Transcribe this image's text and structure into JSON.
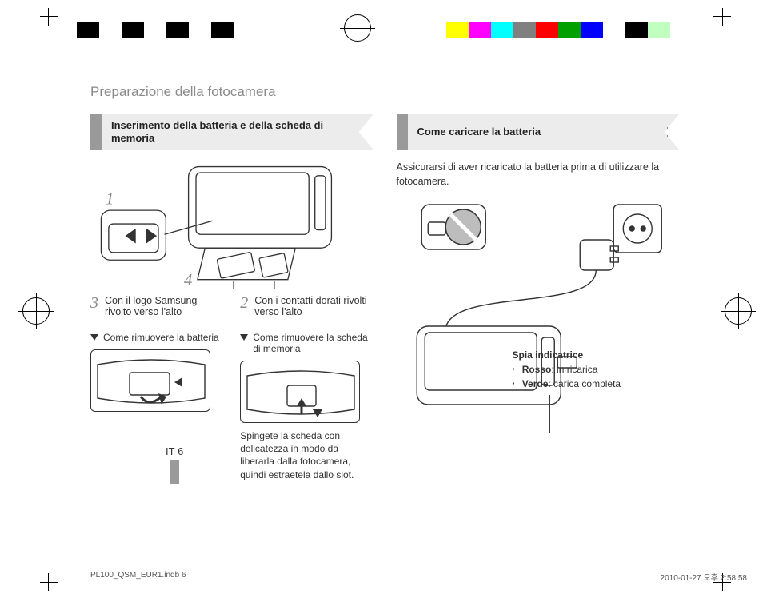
{
  "print_bars": {
    "left_colors": [
      "#000000",
      "#ffffff",
      "#000000",
      "#ffffff",
      "#000000",
      "#ffffff",
      "#000000",
      "#ffffff"
    ],
    "right_colors": [
      "#ffff00",
      "#ff00ff",
      "#00ffff",
      "#808080",
      "#ff0000",
      "#00a000",
      "#0000ff",
      "#ffffff",
      "#000000",
      "#c0ffc0"
    ]
  },
  "page_title": "Preparazione della fotocamera",
  "left": {
    "heading": "Inserimento della batteria e della scheda di memoria",
    "step1_num": "1",
    "step4_num": "4",
    "step3": {
      "num": "3",
      "text": "Con il logo Samsung rivolto verso l'alto"
    },
    "step2": {
      "num": "2",
      "text": "Con i contatti dorati rivolti verso l'alto"
    },
    "remove_battery": "Come rimuovere la batteria",
    "remove_card": "Come rimuovere la scheda di memoria",
    "card_caption": "Spingete la scheda con delicatezza in modo da liberarla dalla fotocamera, quindi estraetela dallo slot."
  },
  "right": {
    "heading": "Come caricare la batteria",
    "intro": "Assicurarsi di aver ricaricato la batteria prima di utilizzare la fotocamera.",
    "legend_title": "Spia indicatrice",
    "legend_red_label": "Rosso",
    "legend_red_text": ": in ricarica",
    "legend_green_label": "Verde",
    "legend_green_text": ": carica completa"
  },
  "page_number": "IT-6",
  "footer": {
    "left": "PL100_QSM_EUR1.indb   6",
    "right": "2010-01-27   오후 2:58:58"
  },
  "colors": {
    "muted": "#8a8a8a",
    "panel": "#ececec",
    "text": "#333333",
    "line": "#333333"
  }
}
